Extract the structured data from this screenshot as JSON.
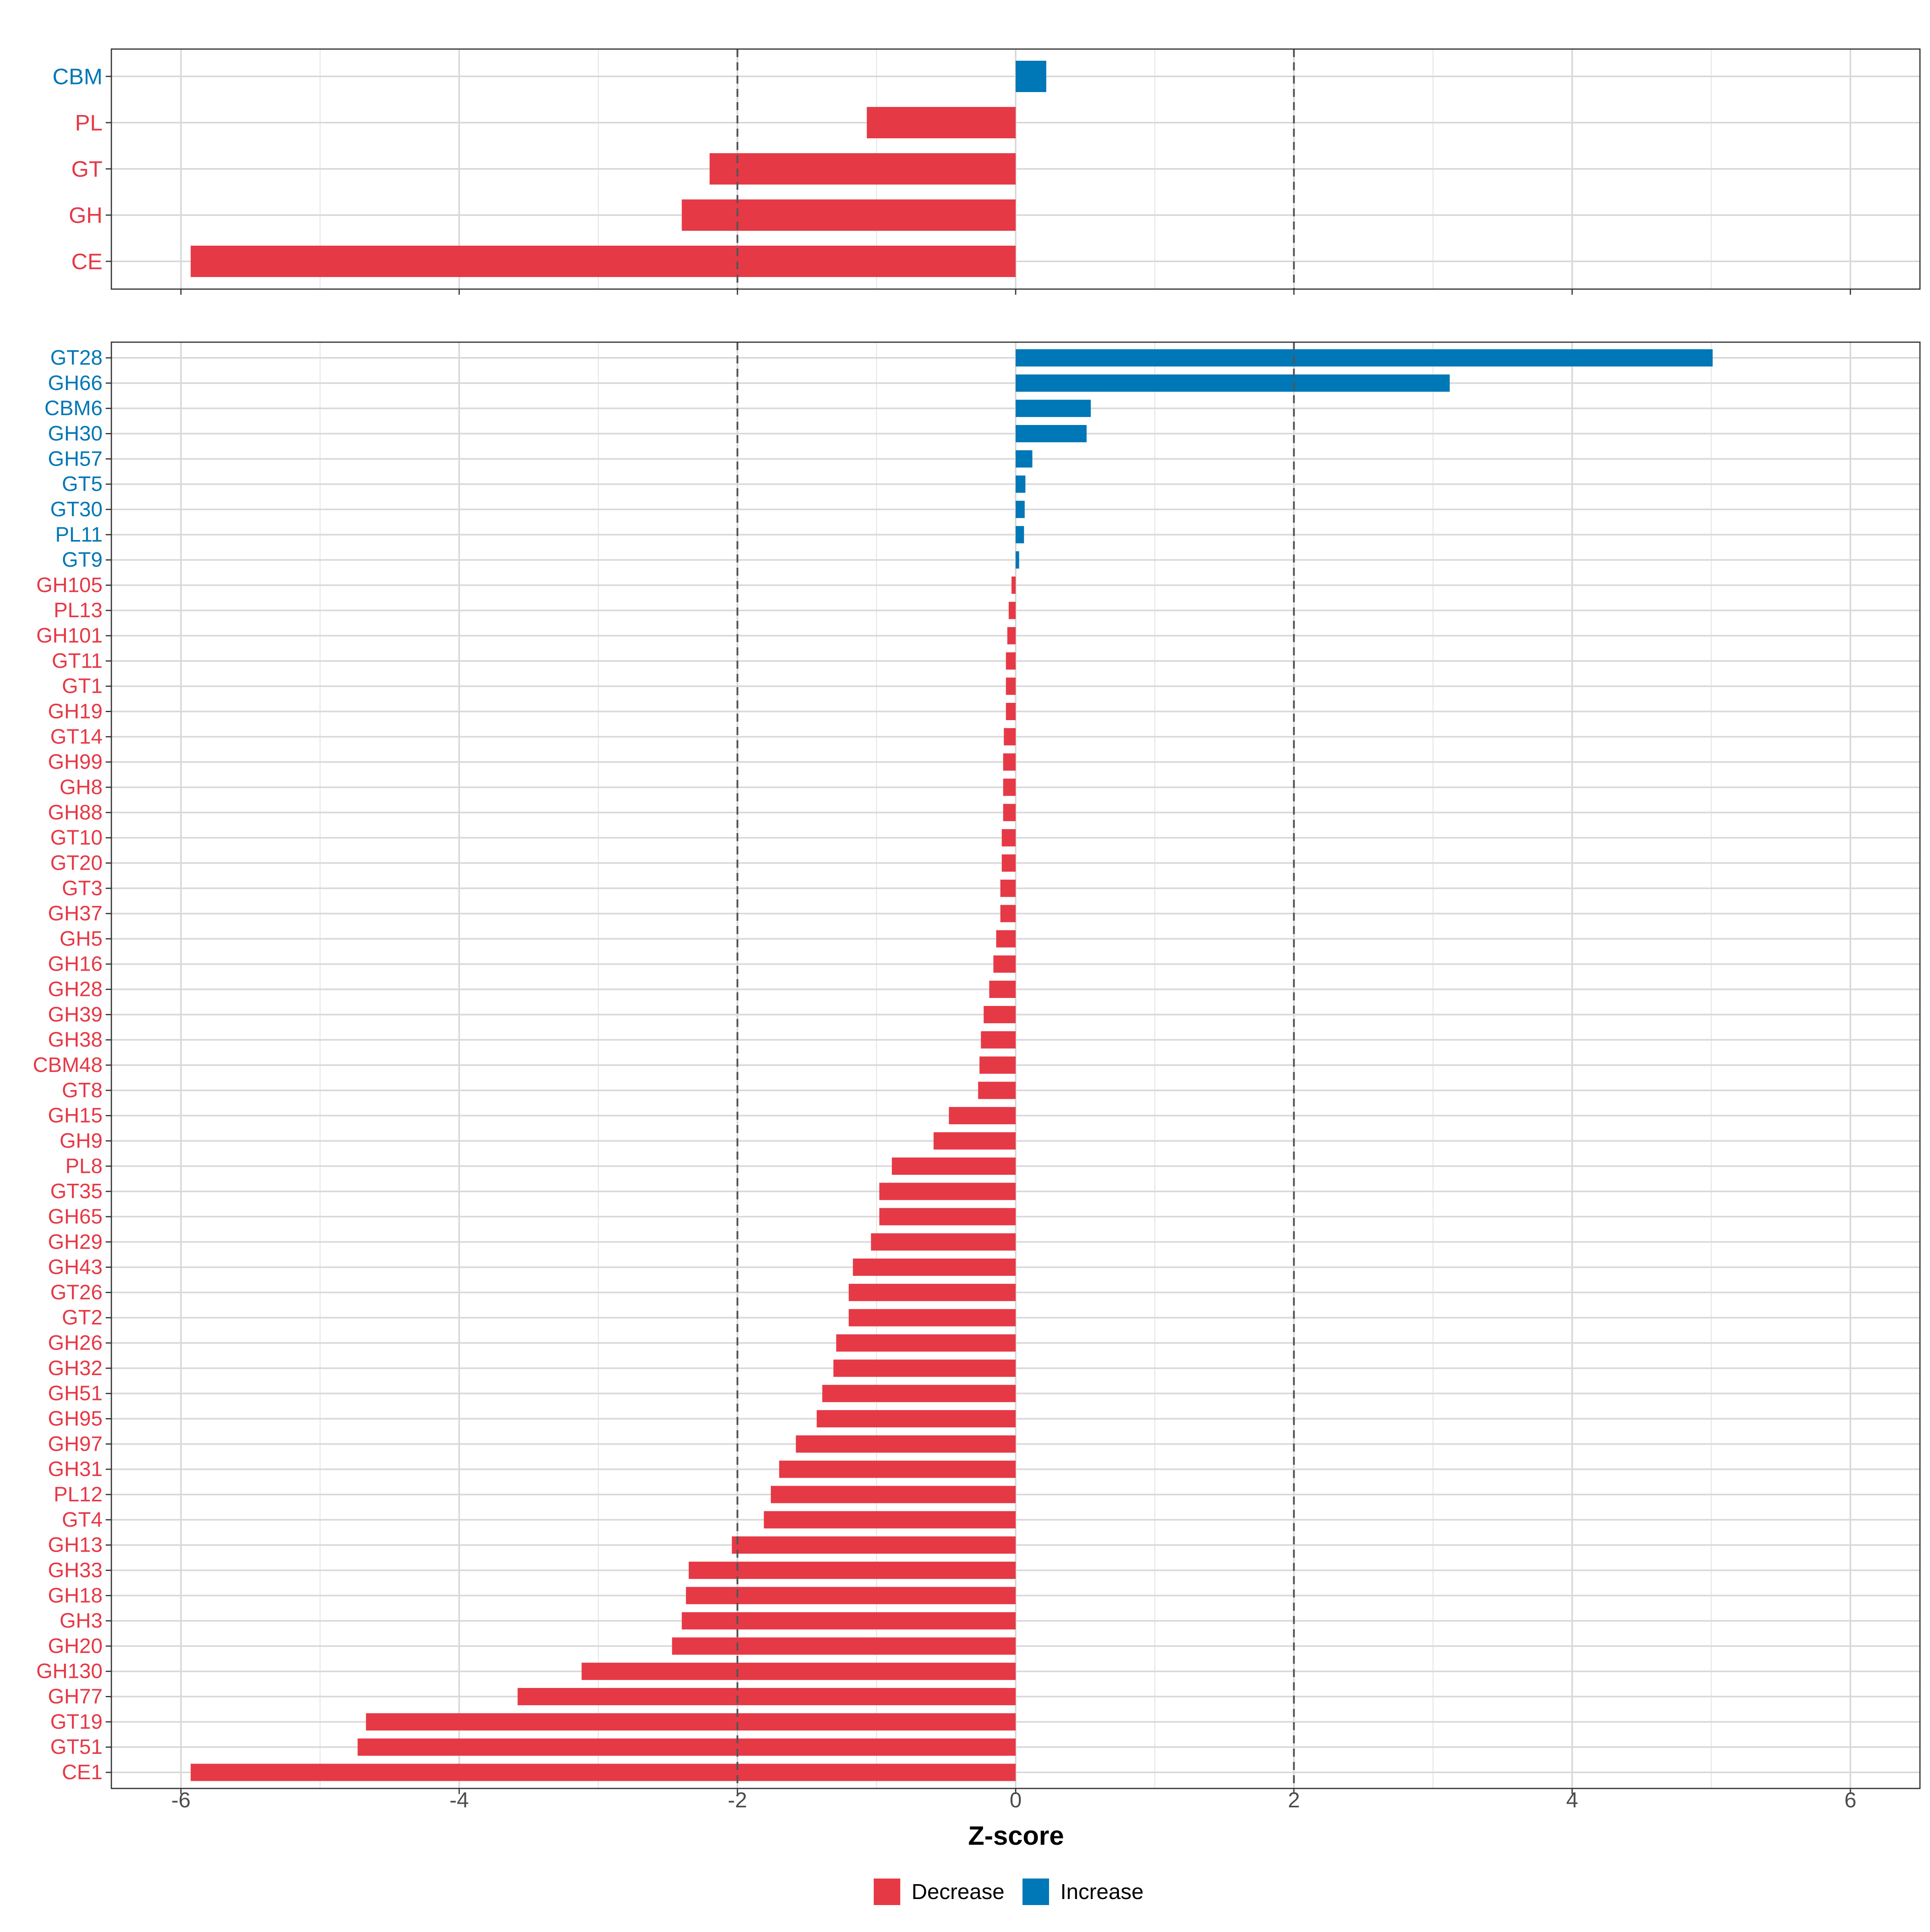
{
  "colors": {
    "decrease": "#E63946",
    "increase": "#0077B6",
    "grid": "#D9D9D9",
    "ref_line": "#555555",
    "axis_text": "#4D4D4D",
    "panel_border": "#333333"
  },
  "chart_data": [
    {
      "type": "bar",
      "orientation": "horizontal",
      "panel": "top",
      "categories": [
        "CBM",
        "PL",
        "GT",
        "GH",
        "CE"
      ],
      "values": [
        0.22,
        -1.07,
        -2.2,
        -2.4,
        -5.93
      ],
      "xlim": [
        -6.5,
        6.5
      ],
      "xticks": [
        -6,
        -4,
        -2,
        0,
        2,
        4,
        6
      ],
      "reference_lines": [
        -2,
        2
      ],
      "grid": true
    },
    {
      "type": "bar",
      "orientation": "horizontal",
      "panel": "bottom",
      "categories": [
        "GT28",
        "GH66",
        "CBM6",
        "GH30",
        "GH57",
        "GT5",
        "GT30",
        "PL11",
        "GT9",
        "GH105",
        "PL13",
        "GH101",
        "GT11",
        "GT1",
        "GH19",
        "GT14",
        "GH99",
        "GH8",
        "GH88",
        "GT10",
        "GT20",
        "GT3",
        "GH37",
        "GH5",
        "GH16",
        "GH28",
        "GH39",
        "GH38",
        "CBM48",
        "GT8",
        "GH15",
        "GH9",
        "PL8",
        "GT35",
        "GH65",
        "GH29",
        "GH43",
        "GT26",
        "GT2",
        "GH26",
        "GH32",
        "GH51",
        "GH95",
        "GH97",
        "GH31",
        "PL12",
        "GT4",
        "GH13",
        "GH33",
        "GH18",
        "GH3",
        "GH20",
        "GH130",
        "GH77",
        "GT19",
        "GT51",
        "CE1"
      ],
      "values": [
        5.01,
        3.12,
        0.54,
        0.51,
        0.12,
        0.07,
        0.065,
        0.06,
        0.025,
        -0.03,
        -0.05,
        -0.06,
        -0.07,
        -0.07,
        -0.07,
        -0.085,
        -0.09,
        -0.09,
        -0.09,
        -0.1,
        -0.1,
        -0.11,
        -0.11,
        -0.14,
        -0.16,
        -0.19,
        -0.23,
        -0.25,
        -0.26,
        -0.27,
        -0.48,
        -0.59,
        -0.89,
        -0.98,
        -0.98,
        -1.04,
        -1.17,
        -1.2,
        -1.2,
        -1.29,
        -1.31,
        -1.39,
        -1.43,
        -1.58,
        -1.7,
        -1.76,
        -1.81,
        -2.04,
        -2.35,
        -2.37,
        -2.4,
        -2.47,
        -3.12,
        -3.58,
        -4.67,
        -4.73,
        -5.93
      ],
      "xlim": [
        -6.5,
        6.5
      ],
      "xticks": [
        -6,
        -4,
        -2,
        0,
        2,
        4,
        6
      ],
      "xticklabels": [
        "-6",
        "-4",
        "-2",
        "0",
        "2",
        "4",
        "6"
      ],
      "reference_lines": [
        -2,
        2
      ],
      "xlabel": "Z-score",
      "grid": true
    }
  ],
  "legend": {
    "position": "bottom",
    "items": [
      {
        "label": "Decrease",
        "color_key": "decrease"
      },
      {
        "label": "Increase",
        "color_key": "increase"
      }
    ]
  }
}
